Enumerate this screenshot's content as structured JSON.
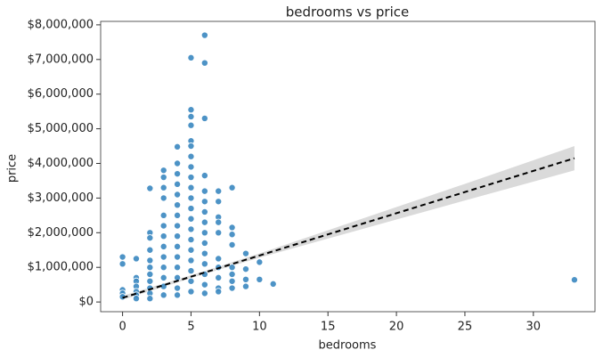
{
  "chart_data": {
    "type": "scatter",
    "title": "bedrooms vs price",
    "x_label": "bedrooms",
    "y_label": "price",
    "color": "#3a87c0",
    "x": [
      0,
      0,
      0,
      0,
      0,
      1,
      1,
      1,
      1,
      1,
      1,
      1,
      2,
      2,
      2,
      2,
      2,
      2,
      2,
      2,
      2,
      2,
      2,
      3,
      3,
      3,
      3,
      3,
      3,
      3,
      3,
      3,
      3,
      3,
      3,
      3,
      4,
      4,
      4,
      4,
      4,
      4,
      4,
      4,
      4,
      4,
      4,
      4,
      4,
      4,
      4,
      5,
      5,
      5,
      5,
      5,
      5,
      5,
      5,
      5,
      5,
      5,
      5,
      5,
      5,
      5,
      5,
      5,
      5,
      5,
      5,
      6,
      6,
      6,
      6,
      6,
      6,
      6,
      6,
      6,
      6,
      6,
      6,
      6,
      6,
      6,
      7,
      7,
      7,
      7,
      7,
      7,
      7,
      7,
      7,
      7,
      8,
      8,
      8,
      8,
      8,
      8,
      8,
      8,
      9,
      9,
      9,
      9,
      10,
      10,
      11,
      33
    ],
    "y": [
      1300000,
      1100000,
      350000,
      250000,
      150000,
      1250000,
      700000,
      600000,
      450000,
      300000,
      200000,
      100000,
      3280000,
      2000000,
      1850000,
      1500000,
      1200000,
      1000000,
      800000,
      600000,
      400000,
      250000,
      100000,
      3800000,
      3600000,
      3300000,
      3000000,
      2500000,
      2200000,
      1900000,
      1600000,
      1300000,
      1000000,
      700000,
      450000,
      200000,
      4480000,
      4000000,
      3700000,
      3400000,
      3100000,
      2800000,
      2500000,
      2200000,
      1900000,
      1600000,
      1300000,
      1000000,
      700000,
      400000,
      200000,
      7050000,
      5550000,
      5350000,
      5100000,
      4650000,
      4500000,
      4200000,
      3900000,
      3600000,
      3300000,
      3000000,
      2700000,
      2400000,
      2100000,
      1800000,
      1500000,
      1200000,
      900000,
      600000,
      300000,
      7700000,
      6900000,
      5300000,
      3650000,
      3200000,
      2900000,
      2600000,
      2300000,
      2000000,
      1700000,
      1400000,
      1100000,
      800000,
      500000,
      250000,
      3200000,
      2900000,
      2450000,
      2300000,
      2000000,
      1250000,
      1000000,
      700000,
      400000,
      300000,
      3300000,
      2150000,
      1950000,
      1650000,
      1000000,
      800000,
      600000,
      400000,
      1400000,
      950000,
      650000,
      450000,
      1150000,
      650000,
      520000,
      640000
    ],
    "fit": {
      "color": "#000000",
      "x": [
        0,
        33
      ],
      "y": [
        120000,
        4150000
      ]
    },
    "band": {
      "color": "#d3d3d3",
      "x": [
        0,
        5,
        10,
        15,
        20,
        25,
        33
      ],
      "lower": [
        60000,
        690000,
        1280000,
        1830000,
        2380000,
        2930000,
        3800000
      ],
      "upper": [
        180000,
        770000,
        1400000,
        2070000,
        2740000,
        3410000,
        4500000
      ]
    },
    "xlim": [
      -1.6,
      34.5
    ],
    "ylim": [
      -280000,
      8100000
    ],
    "xticks": [
      0,
      5,
      10,
      15,
      20,
      25,
      30
    ],
    "yticks": [
      {
        "value": 0,
        "label": "$0"
      },
      {
        "value": 1000000,
        "label": "$1,000,000"
      },
      {
        "value": 2000000,
        "label": "$2,000,000"
      },
      {
        "value": 3000000,
        "label": "$3,000,000"
      },
      {
        "value": 4000000,
        "label": "$4,000,000"
      },
      {
        "value": 5000000,
        "label": "$5,000,000"
      },
      {
        "value": 6000000,
        "label": "$6,000,000"
      },
      {
        "value": 7000000,
        "label": "$7,000,000"
      },
      {
        "value": 8000000,
        "label": "$8,000,000"
      }
    ]
  }
}
